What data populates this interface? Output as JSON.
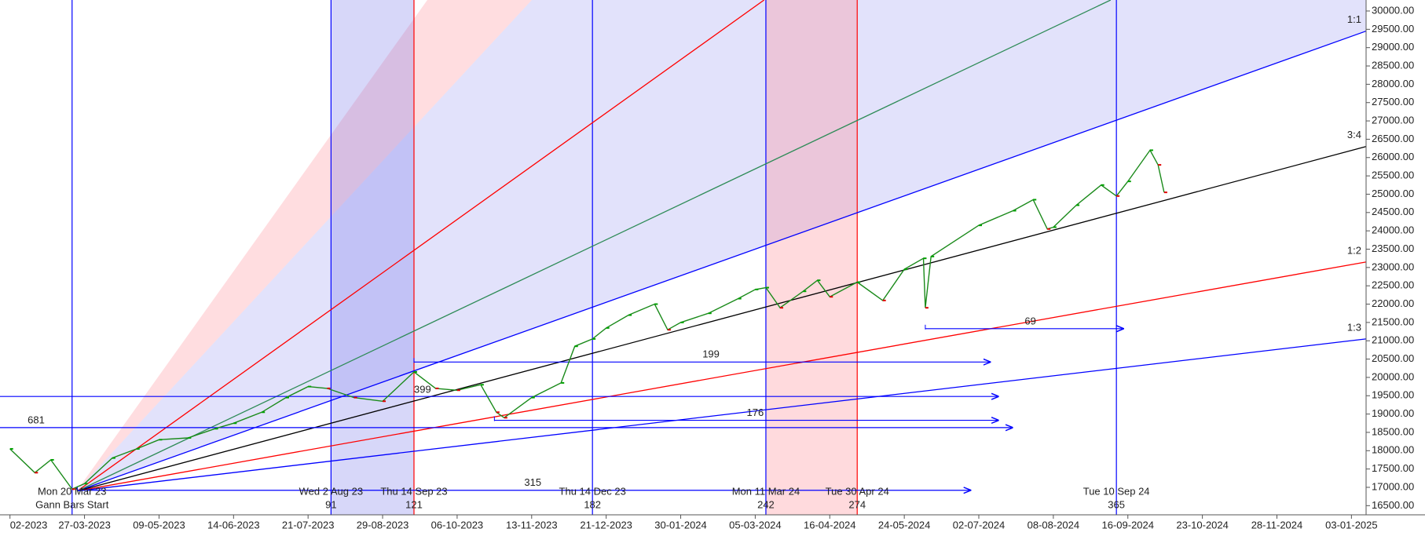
{
  "chart_data": {
    "type": "line",
    "line_color": "#1a8a1a",
    "up_color": "#00a000",
    "down_color": "#e00000",
    "x": [
      "13-02-2023",
      "27-02-2023",
      "08-03-2023",
      "20-03-2023",
      "27-03-2023",
      "12-04-2023",
      "26-04-2023",
      "09-05-2023",
      "23-05-2023",
      "05-06-2023",
      "14-06-2023",
      "28-06-2023",
      "10-07-2023",
      "21-07-2023",
      "31-07-2023",
      "14-08-2023",
      "29-08-2023",
      "14-09-2023",
      "25-09-2023",
      "06-10-2023",
      "18-10-2023",
      "26-10-2023",
      "30-10-2023",
      "13-11-2023",
      "28-11-2023",
      "05-12-2023",
      "14-12-2023",
      "21-12-2023",
      "02-01-2024",
      "16-01-2024",
      "23-01-2024",
      "30-01-2024",
      "12-02-2024",
      "26-02-2024",
      "05-03-2024",
      "11-03-2024",
      "19-03-2024",
      "01-04-2024",
      "09-04-2024",
      "16-04-2024",
      "30-04-2024",
      "13-05-2024",
      "24-05-2024",
      "03-06-2024",
      "04-06-2024",
      "07-06-2024",
      "02-07-2024",
      "19-07-2024",
      "29-07-2024",
      "05-08-2024",
      "08-08-2024",
      "20-08-2024",
      "02-09-2024",
      "10-09-2024",
      "16-09-2024",
      "27-09-2024",
      "01-10-2024",
      "04-10-2024"
    ],
    "values": [
      18050,
      17400,
      17750,
      16950,
      17100,
      17800,
      18050,
      18300,
      18350,
      18600,
      18750,
      19050,
      19450,
      19750,
      19700,
      19450,
      19350,
      20150,
      19700,
      19650,
      19800,
      19050,
      18900,
      19450,
      19850,
      20850,
      21050,
      21350,
      21700,
      22000,
      21300,
      21500,
      21750,
      22150,
      22400,
      22450,
      21900,
      22350,
      22650,
      22200,
      22600,
      22100,
      22950,
      23250,
      21900,
      23300,
      24150,
      24550,
      24850,
      24050,
      24100,
      24700,
      25250,
      24950,
      25350,
      26200,
      25800,
      25050
    ],
    "ylim": [
      16250,
      30300
    ],
    "yticks": [
      {
        "value": 16500,
        "label": "16500.00"
      },
      {
        "value": 17000,
        "label": "17000.00"
      },
      {
        "value": 17500,
        "label": "17500.00"
      },
      {
        "value": 18000,
        "label": "18000.00"
      },
      {
        "value": 18500,
        "label": "18500.00"
      },
      {
        "value": 19000,
        "label": "19000.00"
      },
      {
        "value": 19500,
        "label": "19500.00"
      },
      {
        "value": 20000,
        "label": "20000.00"
      },
      {
        "value": 20500,
        "label": "20500.00"
      },
      {
        "value": 21000,
        "label": "21000.00"
      },
      {
        "value": 21500,
        "label": "21500.00"
      },
      {
        "value": 22000,
        "label": "22000.00"
      },
      {
        "value": 22500,
        "label": "22500.00"
      },
      {
        "value": 23000,
        "label": "23000.00"
      },
      {
        "value": 23500,
        "label": "23500.00"
      },
      {
        "value": 24000,
        "label": "24000.00"
      },
      {
        "value": 24500,
        "label": "24500.00"
      },
      {
        "value": 25000,
        "label": "25000.00"
      },
      {
        "value": 25500,
        "label": "25500.00"
      },
      {
        "value": 26000,
        "label": "26000.00"
      },
      {
        "value": 26500,
        "label": "26500.00"
      },
      {
        "value": 27000,
        "label": "27000.00"
      },
      {
        "value": 27500,
        "label": "27500.00"
      },
      {
        "value": 28000,
        "label": "28000.00"
      },
      {
        "value": 28500,
        "label": "28500.00"
      },
      {
        "value": 29000,
        "label": "29000.00"
      },
      {
        "value": 29500,
        "label": "29500.00"
      },
      {
        "value": 30000,
        "label": "30000.00"
      }
    ],
    "xticks": [
      {
        "value": "13-02-2023",
        "label": "02-2023"
      },
      "27-03-2023",
      "09-05-2023",
      "14-06-2023",
      "21-07-2023",
      "29-08-2023",
      "06-10-2023",
      "13-11-2023",
      "21-12-2023",
      "30-01-2024",
      "05-03-2024",
      "16-04-2024",
      "24-05-2024",
      "02-07-2024",
      "08-08-2024",
      "16-09-2024",
      "23-10-2024",
      "28-11-2024",
      "03-01-2025"
    ],
    "vlines": [
      {
        "date": "20-03-2023",
        "label": "Mon 20 Mar 23",
        "count": "Gann Bars Start",
        "color": "#0000ff"
      },
      {
        "date": "02-08-2023",
        "label": "Wed 2 Aug 23",
        "count": 91,
        "color": "#0000ff",
        "band_color": "rgba(110,110,235,0.28)"
      },
      {
        "date": "14-09-2023",
        "label": "Thu 14 Sep 23",
        "count": 121,
        "color": "#ff0000"
      },
      {
        "date": "14-12-2023",
        "label": "Thu 14 Dec 23",
        "count": 182,
        "color": "#0000ff"
      },
      {
        "date": "11-03-2024",
        "label": "Mon 11 Mar 24",
        "count": 242,
        "color": "#0000ff",
        "band_color": "rgba(255,140,150,0.32)"
      },
      {
        "date": "30-04-2024",
        "label": "Tue 30 Apr 24",
        "count": 274,
        "color": "#ff0000"
      },
      {
        "date": "10-09-2024",
        "label": "Tue 10 Sep 24",
        "count": 365,
        "color": "#0000ff"
      }
    ],
    "fan_origin": {
      "x": "23-03-2023",
      "y": 16900
    },
    "fan_lines": [
      {
        "end_x": "10-01-2025",
        "end_y": 29450,
        "color": "#0000ff",
        "label": "1:1"
      },
      {
        "end_x": "10-01-2025",
        "end_y": 26300,
        "color": "#000000",
        "label": "3:4"
      },
      {
        "end_x": "10-01-2025",
        "end_y": 23150,
        "color": "#ff0000",
        "label": "1:2"
      },
      {
        "end_x": "10-01-2025",
        "end_y": 21050,
        "color": "#0000ff",
        "label": "1:3"
      },
      {
        "end_x": "10-03-2024",
        "end_y": 30300,
        "color": "#ff0000"
      },
      {
        "end_x": "07-09-2024",
        "end_y": 30300,
        "color": "#2e8b57"
      }
    ],
    "hlines": [
      {
        "y": 19480,
        "x_start": "07-02-2023",
        "x_end": "12-07-2024",
        "color": "#0000ff"
      },
      {
        "y": 18630,
        "x_start": "07-02-2023",
        "x_end": "19-07-2024",
        "color": "#0000ff",
        "label": 681,
        "label_align": "start"
      },
      {
        "y": 20420,
        "x_start": "14-09-2023",
        "x_end": "08-07-2024",
        "color": "#0000ff",
        "label": 199,
        "label_align": "middle"
      },
      {
        "y": 18830,
        "x_start": "25-10-2023",
        "x_end": "12-07-2024",
        "color": "#0000ff",
        "label": 176,
        "label_align": "middle"
      },
      {
        "y": 16920,
        "x_start": "23-03-2023",
        "x_end": "28-06-2024",
        "color": "#0000ff",
        "label": 315,
        "label_align": "middle"
      },
      {
        "y": 21330,
        "x_start": "04-06-2024",
        "x_end": "14-09-2024",
        "color": "#0000ff",
        "label": 69,
        "label_align": "middle"
      }
    ],
    "annotations": [
      {
        "text": 399,
        "x": "14-09-2023",
        "y": 19650
      }
    ]
  }
}
